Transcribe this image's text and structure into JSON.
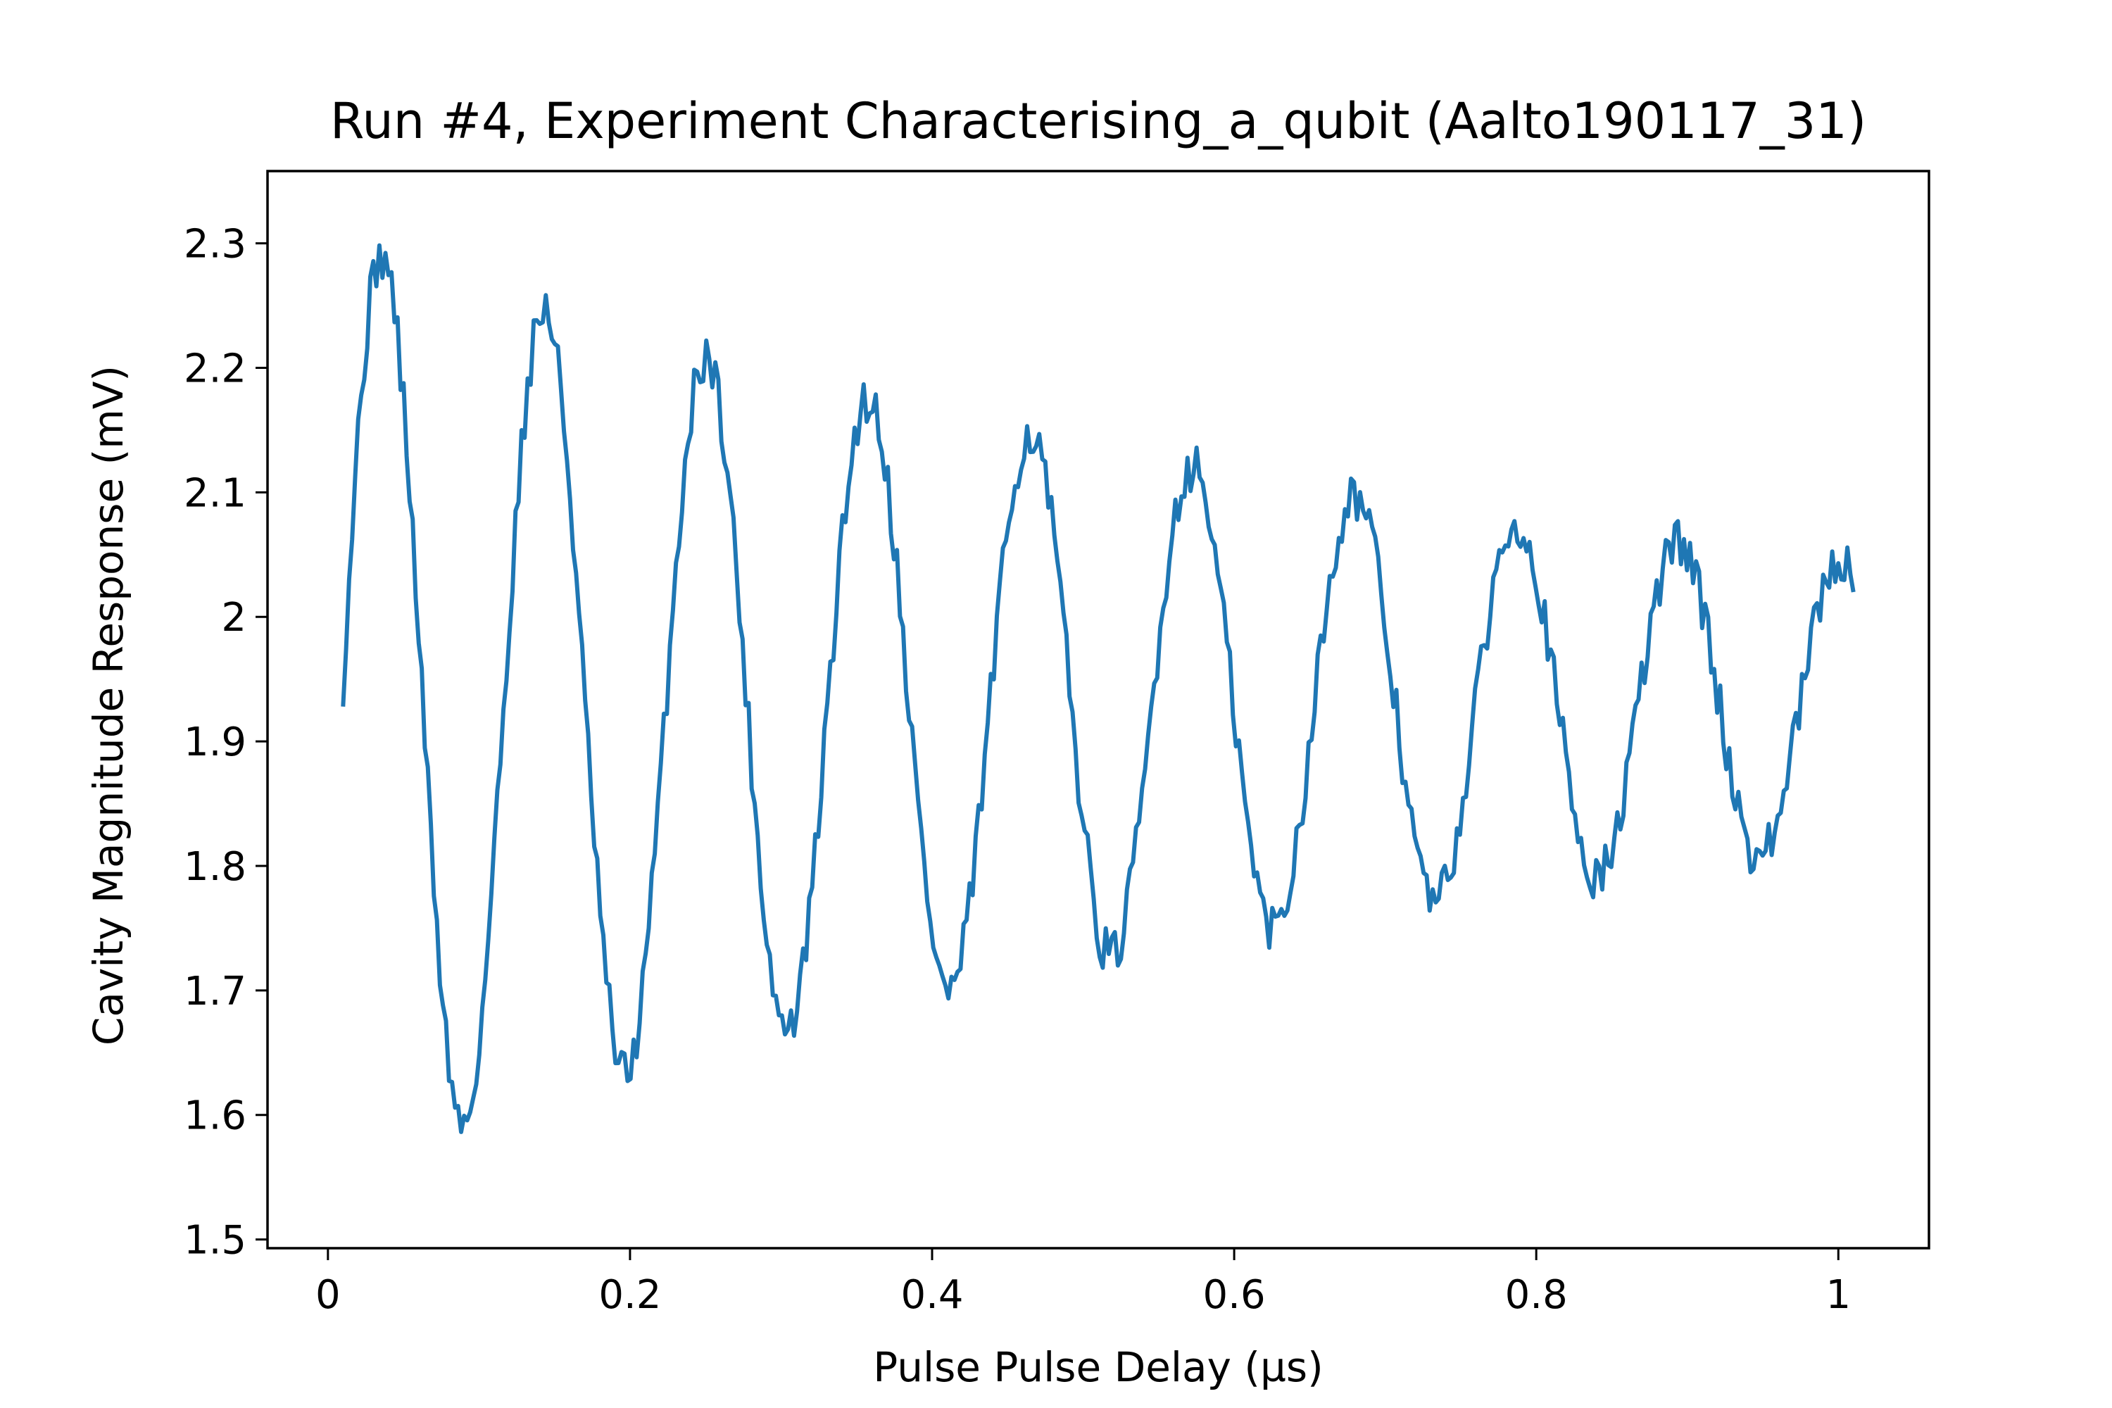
{
  "chart_data": {
    "type": "line",
    "title": "Run #4, Experiment Characterising_a_qubit (Aalto190117_31)",
    "xlabel": "Pulse Pulse Delay (µs)",
    "ylabel": "Cavity Magnitude Response (mV)",
    "xlim": [
      -0.04,
      1.06
    ],
    "ylim": [
      1.493,
      2.358
    ],
    "xticks": [
      0,
      0.2,
      0.4,
      0.6,
      0.8,
      1.0
    ],
    "xtick_labels": [
      "0",
      "0.2",
      "0.4",
      "0.6",
      "0.8",
      "1"
    ],
    "yticks": [
      1.5,
      1.6,
      1.7,
      1.8,
      1.9,
      2.0,
      2.1,
      2.2,
      2.3
    ],
    "ytick_labels": [
      "1.5",
      "1.6",
      "1.7",
      "1.8",
      "1.9",
      "2",
      "2.1",
      "2.2",
      "2.3"
    ],
    "grid": false,
    "series": [
      {
        "color": "#1f77b4",
        "model": {
          "x_start": 0.01,
          "x_end": 1.01,
          "points": 500,
          "offset": 1.93,
          "amplitude": 0.375,
          "decay_rate": 1.18,
          "period": 0.1073,
          "peak_x": 0.036,
          "noise": 0.02
        }
      }
    ]
  }
}
